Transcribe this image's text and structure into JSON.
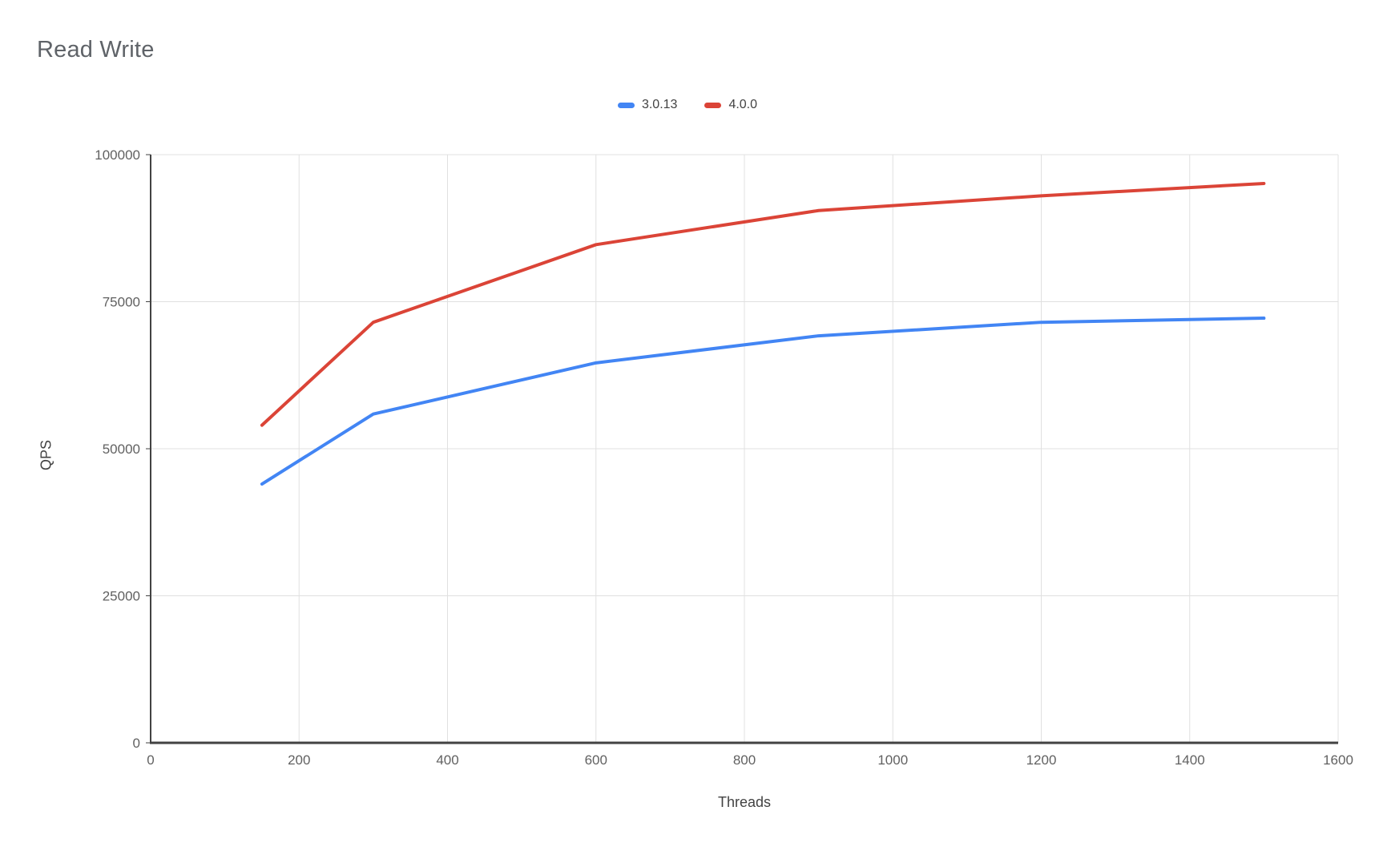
{
  "title": "Read Write",
  "legend": {
    "items": [
      {
        "label": "3.0.13",
        "color": "#4285F4"
      },
      {
        "label": "4.0.0",
        "color": "#DB4437"
      }
    ]
  },
  "axes": {
    "x_title": "Threads",
    "y_title": "QPS"
  },
  "colors": {
    "background": "#ffffff",
    "title_text": "#5f6368",
    "axis_line": "#424242",
    "gridline": "#e0e0e0",
    "tick_label": "#616161",
    "axis_title_text": "#424242",
    "series_blue": "#4285F4",
    "series_red": "#DB4437"
  },
  "chart_data": {
    "type": "line",
    "title": "Read Write",
    "xlabel": "Threads",
    "ylabel": "QPS",
    "x": [
      150,
      300,
      600,
      900,
      1200,
      1500
    ],
    "series": [
      {
        "name": "3.0.13",
        "color": "#4285F4",
        "values": [
          44000,
          55900,
          64600,
          69200,
          71500,
          72200
        ]
      },
      {
        "name": "4.0.0",
        "color": "#DB4437",
        "values": [
          54000,
          71500,
          84700,
          90500,
          93000,
          95100
        ]
      }
    ],
    "xlim": [
      0,
      1600
    ],
    "ylim": [
      0,
      100000
    ],
    "x_ticks": [
      0,
      200,
      400,
      600,
      800,
      1000,
      1200,
      1400,
      1600
    ],
    "y_ticks": [
      0,
      25000,
      50000,
      75000,
      100000
    ],
    "grid": true,
    "legend_position": "top"
  }
}
